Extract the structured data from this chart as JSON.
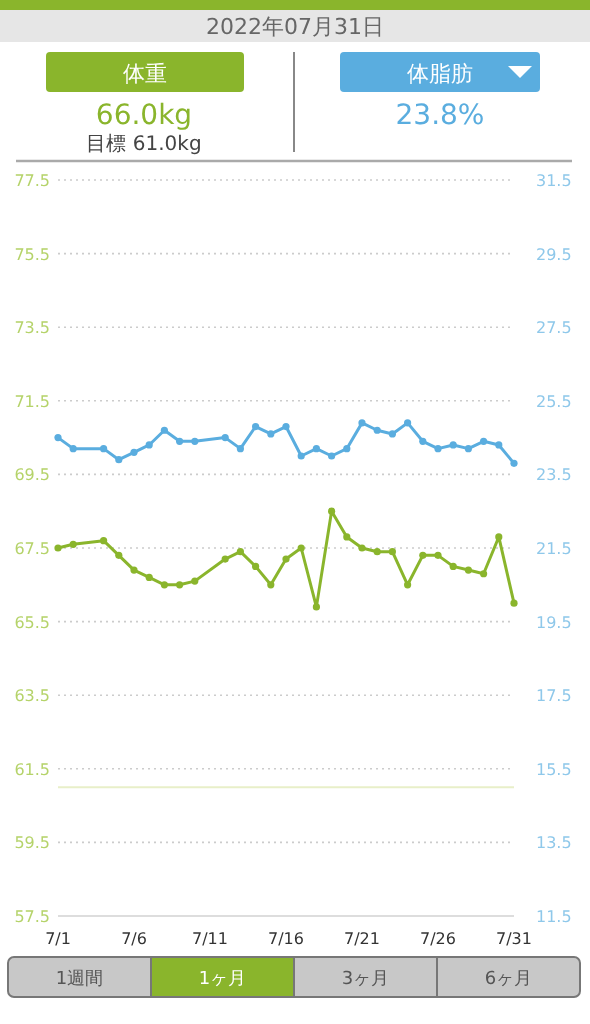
{
  "chart_data": {
    "type": "line",
    "title": "2022年07月31日",
    "x": [
      "--07-01",
      "--07-02",
      "--07-04",
      "--07-05",
      "--07-06",
      "--07-07",
      "--07-08",
      "--07-09",
      "--07-10",
      "--07-12",
      "--07-13",
      "--07-14",
      "--07-15",
      "--07-16",
      "--07-17",
      "--07-18",
      "--07-19",
      "--07-20",
      "--07-21",
      "--07-22",
      "--07-23",
      "--07-24",
      "--07-25",
      "--07-26",
      "--07-27",
      "--07-28",
      "--07-29",
      "--07-30",
      "--07-31"
    ],
    "series": [
      {
        "name": "体重",
        "color": "#8ab52c",
        "axis": "y",
        "values": [
          67.5,
          67.6,
          67.7,
          67.3,
          66.9,
          66.7,
          66.5,
          66.5,
          66.6,
          67.2,
          67.4,
          67.0,
          66.5,
          67.2,
          67.5,
          65.9,
          68.5,
          67.8,
          67.5,
          67.4,
          67.4,
          66.5,
          67.3,
          67.3,
          67.0,
          66.9,
          66.8,
          67.8,
          66.0
        ]
      },
      {
        "name": "体脂肪",
        "color": "#5aaddf",
        "axis": "y2",
        "values": [
          24.5,
          24.2,
          24.2,
          23.9,
          24.1,
          24.3,
          24.7,
          24.4,
          24.4,
          24.5,
          24.2,
          24.8,
          24.6,
          24.8,
          24.0,
          24.2,
          24.0,
          24.2,
          24.9,
          24.7,
          24.6,
          24.9,
          24.4,
          24.2,
          24.3,
          24.2,
          24.4,
          24.3,
          23.8
        ]
      }
    ],
    "xlim": [
      "--07-01",
      "--07-31"
    ],
    "xticks": [
      {
        "value": "--07-01",
        "label": "7/1"
      },
      {
        "value": "--07-06",
        "label": "7/6"
      },
      {
        "value": "--07-11",
        "label": "7/11"
      },
      {
        "value": "--07-16",
        "label": "7/16"
      },
      {
        "value": "--07-21",
        "label": "7/21"
      },
      {
        "value": "--07-26",
        "label": "7/26"
      },
      {
        "value": "--07-31",
        "label": "7/31"
      }
    ],
    "ylim": [
      57.5,
      77.5
    ],
    "yticks": [
      57.5,
      59.5,
      61.5,
      63.5,
      65.5,
      67.5,
      69.5,
      71.5,
      73.5,
      75.5,
      77.5
    ],
    "y2lim": [
      11.5,
      31.5
    ],
    "y2ticks": [
      11.5,
      13.5,
      15.5,
      17.5,
      19.5,
      21.5,
      23.5,
      25.5,
      27.5,
      29.5,
      31.5
    ],
    "ref_lines": [
      {
        "axis": "y",
        "value": 61.0,
        "color": "#e8efc9"
      }
    ],
    "annotations": [
      "66.0kg",
      "目標 61.0kg",
      "23.8%",
      "1週間",
      "1ヶ月",
      "3ヶ月",
      "6ヶ月"
    ],
    "grid": "y",
    "legend": "top",
    "marker": "circle",
    "line_style": "solid"
  }
}
